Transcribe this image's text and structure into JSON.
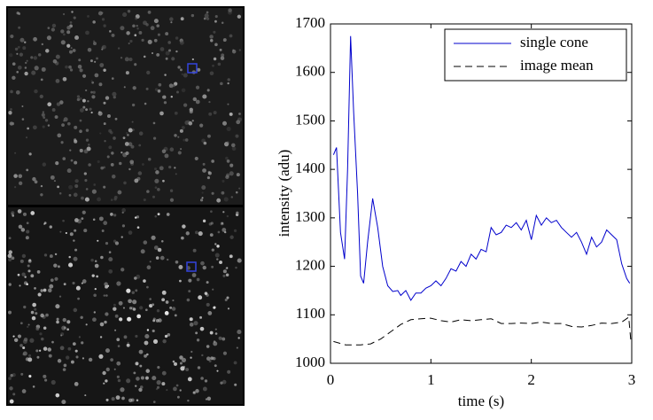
{
  "chart_data": {
    "type": "line",
    "x_label": "time (s)",
    "y_label": "intensity (adu)",
    "xlim": [
      0,
      3
    ],
    "xticks": [
      0,
      1,
      2,
      3
    ],
    "ylim": [
      1000,
      1700
    ],
    "yticks": [
      1000,
      1100,
      1200,
      1300,
      1400,
      1500,
      1600,
      1700
    ],
    "legend": "upper right",
    "series": [
      {
        "name": "single cone",
        "color": "#0000cc",
        "dash": "solid",
        "x": [
          0.03,
          0.06,
          0.1,
          0.14,
          0.17,
          0.2,
          0.23,
          0.27,
          0.3,
          0.33,
          0.37,
          0.42,
          0.47,
          0.52,
          0.57,
          0.62,
          0.67,
          0.7,
          0.75,
          0.8,
          0.85,
          0.9,
          0.95,
          1.0,
          1.05,
          1.1,
          1.15,
          1.2,
          1.25,
          1.3,
          1.35,
          1.4,
          1.45,
          1.5,
          1.55,
          1.6,
          1.65,
          1.7,
          1.75,
          1.8,
          1.85,
          1.9,
          1.95,
          2.0,
          2.05,
          2.1,
          2.15,
          2.2,
          2.25,
          2.3,
          2.35,
          2.4,
          2.45,
          2.5,
          2.55,
          2.6,
          2.65,
          2.7,
          2.75,
          2.8,
          2.85,
          2.9,
          2.95,
          2.98
        ],
        "values": [
          1430,
          1445,
          1270,
          1215,
          1400,
          1675,
          1520,
          1350,
          1180,
          1165,
          1250,
          1340,
          1280,
          1200,
          1160,
          1148,
          1150,
          1140,
          1150,
          1130,
          1145,
          1145,
          1155,
          1160,
          1170,
          1160,
          1175,
          1195,
          1190,
          1210,
          1200,
          1225,
          1215,
          1235,
          1230,
          1280,
          1265,
          1270,
          1285,
          1280,
          1290,
          1275,
          1295,
          1255,
          1305,
          1285,
          1300,
          1290,
          1295,
          1280,
          1270,
          1260,
          1270,
          1250,
          1225,
          1260,
          1240,
          1250,
          1275,
          1265,
          1255,
          1205,
          1175,
          1165
        ]
      },
      {
        "name": "image mean",
        "color": "#000000",
        "dash": "dashed",
        "x": [
          0.03,
          0.15,
          0.3,
          0.4,
          0.5,
          0.6,
          0.7,
          0.8,
          0.9,
          1.0,
          1.1,
          1.2,
          1.3,
          1.4,
          1.5,
          1.6,
          1.7,
          1.8,
          1.9,
          2.0,
          2.1,
          2.2,
          2.3,
          2.4,
          2.5,
          2.6,
          2.7,
          2.8,
          2.9,
          2.97,
          2.99
        ],
        "values": [
          1045,
          1038,
          1038,
          1040,
          1050,
          1065,
          1080,
          1090,
          1092,
          1093,
          1088,
          1085,
          1090,
          1088,
          1090,
          1092,
          1082,
          1082,
          1083,
          1082,
          1085,
          1082,
          1082,
          1076,
          1075,
          1078,
          1083,
          1082,
          1085,
          1095,
          1048
        ]
      }
    ]
  }
}
